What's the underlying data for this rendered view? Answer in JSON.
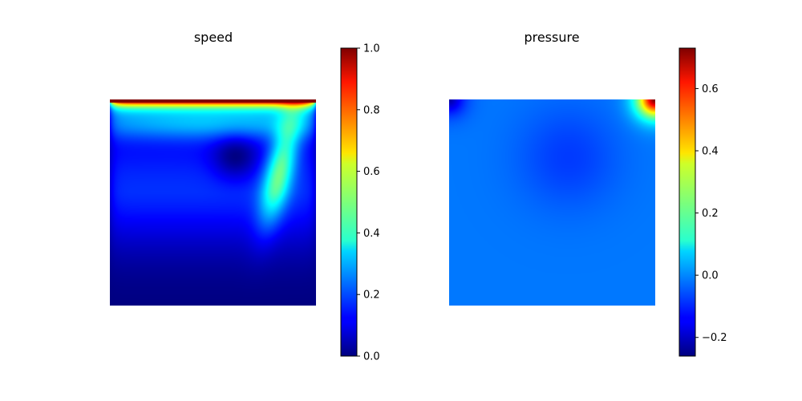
{
  "chart_data": [
    {
      "type": "heatmap",
      "title": "speed",
      "colormap": "jet",
      "colorbar": {
        "range": [
          0.0,
          1.0
        ],
        "ticks": [
          0.0,
          0.2,
          0.4,
          0.6,
          0.8,
          1.0
        ],
        "tick_labels": [
          "0.0",
          "0.2",
          "0.4",
          "0.6",
          "0.8",
          "1.0"
        ]
      },
      "axes_visible": false,
      "field": {
        "domain_x": [
          0,
          1
        ],
        "domain_y": [
          0,
          1
        ],
        "description_values": {
          "lid_top_value": 1.0,
          "primary_vortex_center": [
            0.61,
            0.72
          ],
          "primary_vortex_center_value": 0.05,
          "right_upper_jet_value": 0.38,
          "bottom_value": 0.0
        }
      }
    },
    {
      "type": "heatmap",
      "title": "pressure",
      "colormap": "jet",
      "colorbar": {
        "range": [
          -0.26,
          0.73
        ],
        "ticks": [
          -0.2,
          0.0,
          0.2,
          0.4,
          0.6
        ],
        "tick_labels": [
          "−0.2",
          "0.0",
          "0.2",
          "0.4",
          "0.6"
        ]
      },
      "axes_visible": false,
      "field": {
        "domain_x": [
          0,
          1
        ],
        "domain_y": [
          0,
          1
        ],
        "description_values": {
          "background_value": -0.02,
          "top_right_corner_value": 0.73,
          "top_left_corner_value": -0.22,
          "center_low_value": -0.08
        }
      }
    }
  ]
}
